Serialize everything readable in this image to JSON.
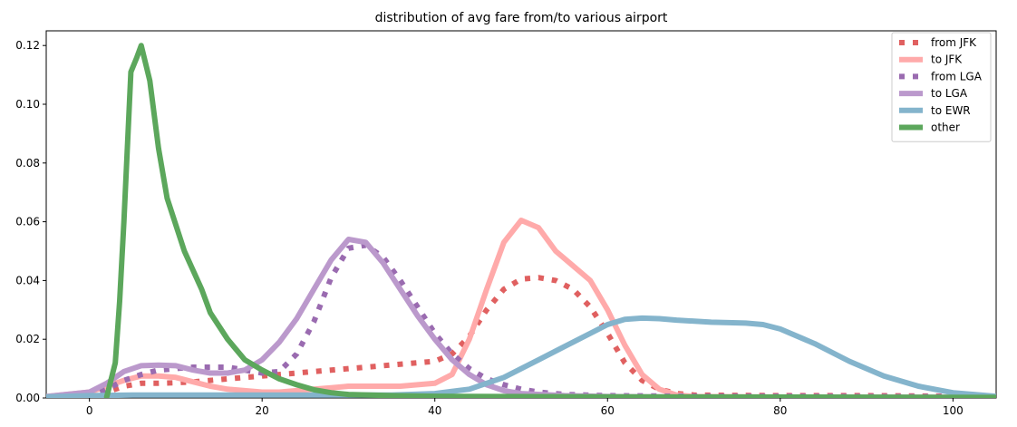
{
  "chart_data": {
    "type": "line",
    "title": "distribution of avg fare from/to various airport",
    "xlabel": "",
    "ylabel": "",
    "xlim": [
      -5,
      105
    ],
    "ylim": [
      0,
      0.125
    ],
    "x_ticks": [
      0,
      20,
      40,
      60,
      80,
      100
    ],
    "y_ticks": [
      0.0,
      0.02,
      0.04,
      0.06,
      0.08,
      0.1,
      0.12
    ],
    "x_tick_labels": [
      "0",
      "20",
      "40",
      "60",
      "80",
      "100"
    ],
    "y_tick_labels": [
      "0.00",
      "0.02",
      "0.04",
      "0.06",
      "0.08",
      "0.10",
      "0.12"
    ],
    "grid": false,
    "legend_position": "top-right",
    "series": [
      {
        "name": "from JFK",
        "color": "#e06060",
        "style": "dotted",
        "points": [
          [
            -5,
            0.0003
          ],
          [
            0,
            0.001
          ],
          [
            2,
            0.002
          ],
          [
            4,
            0.004
          ],
          [
            6,
            0.005
          ],
          [
            8,
            0.005
          ],
          [
            10,
            0.0052
          ],
          [
            12,
            0.0055
          ],
          [
            14,
            0.006
          ],
          [
            16,
            0.0065
          ],
          [
            18,
            0.007
          ],
          [
            20,
            0.0075
          ],
          [
            22,
            0.008
          ],
          [
            24,
            0.0085
          ],
          [
            26,
            0.009
          ],
          [
            28,
            0.0095
          ],
          [
            30,
            0.01
          ],
          [
            32,
            0.0105
          ],
          [
            34,
            0.011
          ],
          [
            36,
            0.0115
          ],
          [
            38,
            0.012
          ],
          [
            40,
            0.0125
          ],
          [
            42,
            0.015
          ],
          [
            44,
            0.021
          ],
          [
            46,
            0.03
          ],
          [
            48,
            0.037
          ],
          [
            50,
            0.0405
          ],
          [
            52,
            0.041
          ],
          [
            54,
            0.04
          ],
          [
            56,
            0.037
          ],
          [
            58,
            0.031
          ],
          [
            60,
            0.022
          ],
          [
            62,
            0.012
          ],
          [
            64,
            0.006
          ],
          [
            66,
            0.003
          ],
          [
            68,
            0.0015
          ],
          [
            70,
            0.001
          ],
          [
            80,
            0.0008
          ],
          [
            90,
            0.0008
          ],
          [
            105,
            0.0005
          ]
        ]
      },
      {
        "name": "to JFK",
        "color": "#ffaaaa",
        "style": "solid",
        "points": [
          [
            -5,
            0.0005
          ],
          [
            0,
            0.002
          ],
          [
            2,
            0.004
          ],
          [
            4,
            0.006
          ],
          [
            6,
            0.0075
          ],
          [
            8,
            0.0075
          ],
          [
            10,
            0.007
          ],
          [
            12,
            0.0055
          ],
          [
            14,
            0.004
          ],
          [
            16,
            0.003
          ],
          [
            18,
            0.0025
          ],
          [
            20,
            0.002
          ],
          [
            22,
            0.002
          ],
          [
            24,
            0.0025
          ],
          [
            26,
            0.003
          ],
          [
            28,
            0.0035
          ],
          [
            30,
            0.004
          ],
          [
            32,
            0.004
          ],
          [
            34,
            0.004
          ],
          [
            36,
            0.004
          ],
          [
            38,
            0.0045
          ],
          [
            40,
            0.005
          ],
          [
            42,
            0.008
          ],
          [
            44,
            0.02
          ],
          [
            46,
            0.037
          ],
          [
            48,
            0.053
          ],
          [
            50,
            0.0605
          ],
          [
            52,
            0.058
          ],
          [
            54,
            0.05
          ],
          [
            56,
            0.045
          ],
          [
            58,
            0.04
          ],
          [
            60,
            0.03
          ],
          [
            62,
            0.018
          ],
          [
            64,
            0.008
          ],
          [
            66,
            0.003
          ],
          [
            68,
            0.001
          ],
          [
            70,
            0.0005
          ],
          [
            80,
            0.0003
          ],
          [
            105,
            0.0002
          ]
        ]
      },
      {
        "name": "from LGA",
        "color": "#9a6bb0",
        "style": "dotted",
        "points": [
          [
            -5,
            0.0002
          ],
          [
            0,
            0.001
          ],
          [
            2,
            0.003
          ],
          [
            4,
            0.006
          ],
          [
            6,
            0.008
          ],
          [
            8,
            0.0095
          ],
          [
            10,
            0.01
          ],
          [
            12,
            0.0105
          ],
          [
            14,
            0.0105
          ],
          [
            16,
            0.0105
          ],
          [
            18,
            0.0095
          ],
          [
            20,
            0.0085
          ],
          [
            22,
            0.009
          ],
          [
            24,
            0.015
          ],
          [
            26,
            0.026
          ],
          [
            28,
            0.041
          ],
          [
            30,
            0.051
          ],
          [
            32,
            0.052
          ],
          [
            34,
            0.048
          ],
          [
            36,
            0.04
          ],
          [
            38,
            0.031
          ],
          [
            40,
            0.022
          ],
          [
            42,
            0.015
          ],
          [
            44,
            0.01
          ],
          [
            46,
            0.0065
          ],
          [
            48,
            0.0045
          ],
          [
            50,
            0.003
          ],
          [
            52,
            0.002
          ],
          [
            55,
            0.0012
          ],
          [
            60,
            0.0008
          ],
          [
            70,
            0.0006
          ],
          [
            80,
            0.0006
          ],
          [
            90,
            0.0005
          ],
          [
            105,
            0.0004
          ]
        ]
      },
      {
        "name": "to LGA",
        "color": "#bb99cc",
        "style": "solid",
        "points": [
          [
            -5,
            0.0005
          ],
          [
            0,
            0.002
          ],
          [
            2,
            0.005
          ],
          [
            4,
            0.009
          ],
          [
            6,
            0.011
          ],
          [
            8,
            0.0112
          ],
          [
            10,
            0.011
          ],
          [
            12,
            0.0095
          ],
          [
            14,
            0.0085
          ],
          [
            16,
            0.0085
          ],
          [
            18,
            0.0095
          ],
          [
            20,
            0.013
          ],
          [
            22,
            0.019
          ],
          [
            24,
            0.027
          ],
          [
            26,
            0.037
          ],
          [
            28,
            0.047
          ],
          [
            30,
            0.054
          ],
          [
            32,
            0.053
          ],
          [
            34,
            0.046
          ],
          [
            36,
            0.037
          ],
          [
            38,
            0.028
          ],
          [
            40,
            0.02
          ],
          [
            42,
            0.013
          ],
          [
            44,
            0.008
          ],
          [
            46,
            0.0045
          ],
          [
            48,
            0.0025
          ],
          [
            50,
            0.0015
          ],
          [
            55,
            0.0008
          ],
          [
            60,
            0.0005
          ],
          [
            70,
            0.0003
          ],
          [
            105,
            0.0002
          ]
        ]
      },
      {
        "name": "to EWR",
        "color": "#84b4cc",
        "style": "solid",
        "points": [
          [
            -5,
            0.0004
          ],
          [
            0,
            0.0008
          ],
          [
            5,
            0.001
          ],
          [
            10,
            0.001
          ],
          [
            15,
            0.001
          ],
          [
            20,
            0.001
          ],
          [
            25,
            0.001
          ],
          [
            30,
            0.001
          ],
          [
            35,
            0.001
          ],
          [
            40,
            0.0015
          ],
          [
            44,
            0.003
          ],
          [
            48,
            0.007
          ],
          [
            52,
            0.013
          ],
          [
            56,
            0.019
          ],
          [
            60,
            0.025
          ],
          [
            62,
            0.0268
          ],
          [
            64,
            0.0272
          ],
          [
            66,
            0.027
          ],
          [
            68,
            0.0265
          ],
          [
            72,
            0.0258
          ],
          [
            76,
            0.0255
          ],
          [
            78,
            0.025
          ],
          [
            80,
            0.0235
          ],
          [
            84,
            0.0185
          ],
          [
            88,
            0.0125
          ],
          [
            92,
            0.0075
          ],
          [
            96,
            0.004
          ],
          [
            100,
            0.0018
          ],
          [
            105,
            0.0006
          ]
        ]
      },
      {
        "name": "other",
        "color": "#5ca75c",
        "style": "solid",
        "points": [
          [
            2,
            0.0003
          ],
          [
            3,
            0.012
          ],
          [
            3.5,
            0.033
          ],
          [
            4,
            0.06
          ],
          [
            4.8,
            0.111
          ],
          [
            5.5,
            0.116
          ],
          [
            6,
            0.12
          ],
          [
            7,
            0.108
          ],
          [
            8,
            0.085
          ],
          [
            9,
            0.068
          ],
          [
            11,
            0.05
          ],
          [
            13,
            0.037
          ],
          [
            14,
            0.029
          ],
          [
            16,
            0.02
          ],
          [
            18,
            0.013
          ],
          [
            20,
            0.0095
          ],
          [
            22,
            0.0065
          ],
          [
            24,
            0.0045
          ],
          [
            26,
            0.0028
          ],
          [
            28,
            0.0018
          ],
          [
            30,
            0.0012
          ],
          [
            35,
            0.0008
          ],
          [
            40,
            0.0006
          ],
          [
            60,
            0.0004
          ],
          [
            105,
            0.0002
          ]
        ]
      }
    ]
  }
}
